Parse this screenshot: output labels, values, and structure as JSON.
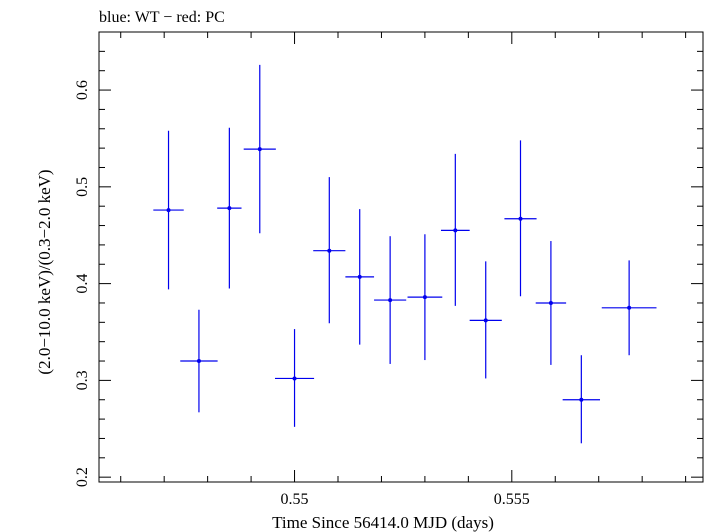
{
  "chart_data": {
    "type": "scatter",
    "title": "blue: WT − red: PC",
    "xlabel": "Time Since 56414.0 MJD (days)",
    "ylabel": "(2.0−10.0 keV)/(0.3−2.0 keV)",
    "xlim": [
      0.5455,
      0.5594
    ],
    "ylim": [
      0.195,
      0.66
    ],
    "x_ticks": [
      {
        "value": 0.55,
        "label": "0.55"
      },
      {
        "value": 0.555,
        "label": "0.555"
      }
    ],
    "y_ticks": [
      {
        "value": 0.2,
        "label": "0.2"
      },
      {
        "value": 0.3,
        "label": "0.3"
      },
      {
        "value": 0.4,
        "label": "0.4"
      },
      {
        "value": 0.5,
        "label": "0.5"
      },
      {
        "value": 0.6,
        "label": "0.6"
      }
    ],
    "series": [
      {
        "color": "#0000ee",
        "points": [
          {
            "x": 0.5471,
            "xerr": 0.00035,
            "y": 0.476,
            "ylo": 0.394,
            "yhi": 0.558
          },
          {
            "x": 0.5478,
            "xerr": 0.00043,
            "y": 0.32,
            "ylo": 0.267,
            "yhi": 0.373
          },
          {
            "x": 0.5485,
            "xerr": 0.00028,
            "y": 0.478,
            "ylo": 0.395,
            "yhi": 0.561
          },
          {
            "x": 0.5492,
            "xerr": 0.00037,
            "y": 0.539,
            "ylo": 0.452,
            "yhi": 0.626
          },
          {
            "x": 0.55,
            "xerr": 0.00045,
            "y": 0.302,
            "ylo": 0.252,
            "yhi": 0.353
          },
          {
            "x": 0.5508,
            "xerr": 0.00037,
            "y": 0.434,
            "ylo": 0.359,
            "yhi": 0.51
          },
          {
            "x": 0.5515,
            "xerr": 0.00033,
            "y": 0.407,
            "ylo": 0.337,
            "yhi": 0.477
          },
          {
            "x": 0.5522,
            "xerr": 0.00037,
            "y": 0.383,
            "ylo": 0.317,
            "yhi": 0.449
          },
          {
            "x": 0.553,
            "xerr": 0.0004,
            "y": 0.386,
            "ylo": 0.321,
            "yhi": 0.451
          },
          {
            "x": 0.5537,
            "xerr": 0.00033,
            "y": 0.455,
            "ylo": 0.377,
            "yhi": 0.534
          },
          {
            "x": 0.5544,
            "xerr": 0.00037,
            "y": 0.362,
            "ylo": 0.302,
            "yhi": 0.423
          },
          {
            "x": 0.5552,
            "xerr": 0.00037,
            "y": 0.467,
            "ylo": 0.387,
            "yhi": 0.548
          },
          {
            "x": 0.5559,
            "xerr": 0.00035,
            "y": 0.38,
            "ylo": 0.316,
            "yhi": 0.444
          },
          {
            "x": 0.5566,
            "xerr": 0.00043,
            "y": 0.28,
            "ylo": 0.235,
            "yhi": 0.326
          },
          {
            "x": 0.5577,
            "xerr": 0.00063,
            "y": 0.375,
            "ylo": 0.326,
            "yhi": 0.424
          }
        ]
      }
    ],
    "grid": false,
    "legend": "none"
  }
}
